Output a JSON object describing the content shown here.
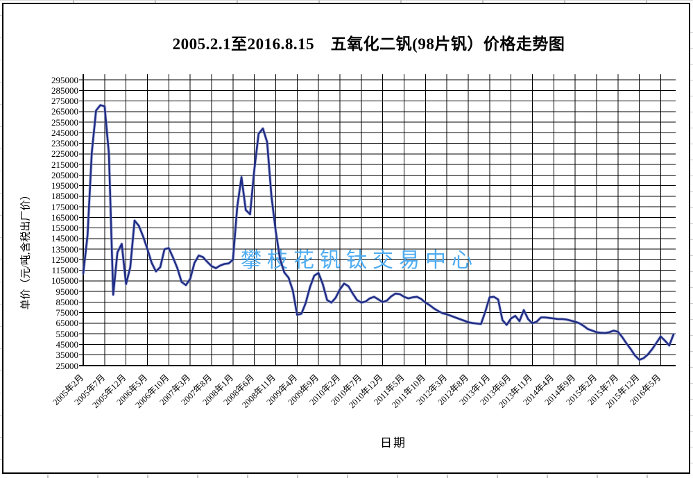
{
  "page": {
    "title": "2005.2.1至2016.8.15　五氧化二钒(98片钒）价格走势图"
  },
  "chart_data": {
    "type": "line",
    "title": "2005.2.1至2016.8.15　五氧化二钒(98片钒）价格走势图",
    "xlabel": "日期",
    "ylabel": "单价（元/吨,含税出厂价）",
    "watermark": "攀枝花钒钛交易中心",
    "grid": "both",
    "legend_position": "none",
    "ylim": [
      25000,
      295000
    ],
    "y_tick_step": 10000,
    "yticks": [
      295000,
      285000,
      275000,
      265000,
      255000,
      245000,
      235000,
      225000,
      215000,
      205000,
      195000,
      185000,
      175000,
      165000,
      155000,
      145000,
      135000,
      125000,
      115000,
      105000,
      95000,
      85000,
      75000,
      65000,
      55000,
      45000,
      35000,
      25000
    ],
    "x_start": "2005年2月",
    "x_end": "2016年8月",
    "x_tick_interval_months": 5,
    "x_tick_labels": [
      "2005年2月",
      "2005年7月",
      "2005年12月",
      "2006年5月",
      "2006年10月",
      "2007年3月",
      "2007年8月",
      "2008年1月",
      "2008年6月",
      "2008年11月",
      "2009年4月",
      "2009年9月",
      "2010年2月",
      "2010年7月",
      "2010年12月",
      "2011年5月",
      "2011年10月",
      "2012年3月",
      "2012年8月",
      "2013年1月",
      "2013年6月",
      "2013年11月",
      "2014年4月",
      "2014年9月",
      "2015年2月",
      "2015年7月",
      "2015年12月",
      "2016年5月"
    ],
    "colors": {
      "line": "#202e87",
      "line_halo": "#98a0d0",
      "watermark": "#4fadf2",
      "grid": "#000000"
    },
    "series": [
      {
        "name": "五氧化二钒(98片钒)价格",
        "unit": "元/吨",
        "frequency": "monthly",
        "monthly_values": [
          112000,
          148000,
          226000,
          266000,
          271000,
          270000,
          225000,
          92000,
          132000,
          140000,
          102000,
          118000,
          162000,
          157000,
          147000,
          135000,
          122000,
          114000,
          118000,
          135000,
          136000,
          127000,
          117000,
          104000,
          101000,
          107000,
          122000,
          129000,
          127500,
          123000,
          119000,
          117000,
          119500,
          121000,
          121500,
          125000,
          175000,
          203000,
          172000,
          168000,
          210000,
          244000,
          249000,
          236000,
          185000,
          152000,
          126000,
          113000,
          108000,
          96000,
          73000,
          74000,
          84000,
          99000,
          110000,
          112500,
          102000,
          87000,
          84500,
          89000,
          97000,
          102500,
          100000,
          93000,
          87000,
          84500,
          85500,
          88500,
          90000,
          87500,
          85000,
          86500,
          90500,
          93000,
          92500,
          90000,
          88500,
          89500,
          90000,
          88000,
          84500,
          82000,
          79000,
          76500,
          74500,
          73500,
          72000,
          70500,
          69000,
          67500,
          66000,
          65200,
          64800,
          64400,
          76000,
          89500,
          90000,
          87500,
          68000,
          63500,
          69500,
          72000,
          67000,
          77500,
          69000,
          65000,
          66500,
          70500,
          70500,
          70000,
          69500,
          69000,
          69000,
          68500,
          67500,
          66500,
          65000,
          62500,
          59500,
          58000,
          56500,
          56000,
          55800,
          56500,
          58000,
          57000,
          52000,
          46000,
          40500,
          34500,
          30500,
          32000,
          35500,
          40500,
          46500,
          52500,
          48500,
          44000,
          54500
        ]
      }
    ]
  }
}
